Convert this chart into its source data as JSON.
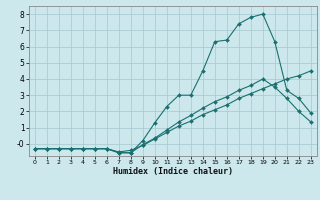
{
  "xlabel": "Humidex (Indice chaleur)",
  "bg_color": "#cce8ec",
  "grid_color": "#aacdd4",
  "line_color": "#1a7070",
  "xlim": [
    -0.5,
    23.5
  ],
  "ylim": [
    -0.75,
    8.5
  ],
  "xticks": [
    0,
    1,
    2,
    3,
    4,
    5,
    6,
    7,
    8,
    9,
    10,
    11,
    12,
    13,
    14,
    15,
    16,
    17,
    18,
    19,
    20,
    21,
    22,
    23
  ],
  "yticks": [
    0,
    1,
    2,
    3,
    4,
    5,
    6,
    7,
    8
  ],
  "ytick_labels": [
    "-0",
    "1",
    "2",
    "3",
    "4",
    "5",
    "6",
    "7",
    "8"
  ],
  "line1_x": [
    0,
    1,
    2,
    3,
    4,
    5,
    6,
    7,
    8,
    9,
    10,
    11,
    12,
    13,
    14,
    15,
    16,
    17,
    18,
    19,
    20,
    21,
    22,
    23
  ],
  "line1_y": [
    -0.3,
    -0.3,
    -0.3,
    -0.3,
    -0.3,
    -0.3,
    -0.3,
    -0.5,
    -0.4,
    -0.1,
    0.3,
    0.7,
    1.1,
    1.4,
    1.8,
    2.1,
    2.4,
    2.8,
    3.1,
    3.4,
    3.7,
    4.0,
    4.2,
    4.5
  ],
  "line2_x": [
    0,
    1,
    2,
    3,
    4,
    5,
    6,
    7,
    8,
    9,
    10,
    11,
    12,
    13,
    14,
    15,
    16,
    17,
    18,
    19,
    20,
    21,
    22,
    23
  ],
  "line2_y": [
    -0.3,
    -0.3,
    -0.3,
    -0.3,
    -0.3,
    -0.3,
    -0.3,
    -0.55,
    -0.55,
    -0.05,
    0.35,
    0.85,
    1.35,
    1.75,
    2.2,
    2.6,
    2.9,
    3.3,
    3.6,
    4.0,
    3.5,
    2.8,
    2.0,
    1.35
  ],
  "line3_x": [
    0,
    1,
    2,
    3,
    4,
    5,
    6,
    7,
    8,
    9,
    10,
    11,
    12,
    13,
    14,
    15,
    16,
    17,
    18,
    19,
    20,
    21,
    22,
    23
  ],
  "line3_y": [
    -0.3,
    -0.3,
    -0.3,
    -0.3,
    -0.3,
    -0.3,
    -0.3,
    -0.55,
    -0.55,
    0.2,
    1.3,
    2.3,
    3.0,
    3.0,
    4.5,
    6.3,
    6.4,
    7.4,
    7.8,
    8.0,
    6.3,
    3.3,
    2.8,
    1.9
  ]
}
